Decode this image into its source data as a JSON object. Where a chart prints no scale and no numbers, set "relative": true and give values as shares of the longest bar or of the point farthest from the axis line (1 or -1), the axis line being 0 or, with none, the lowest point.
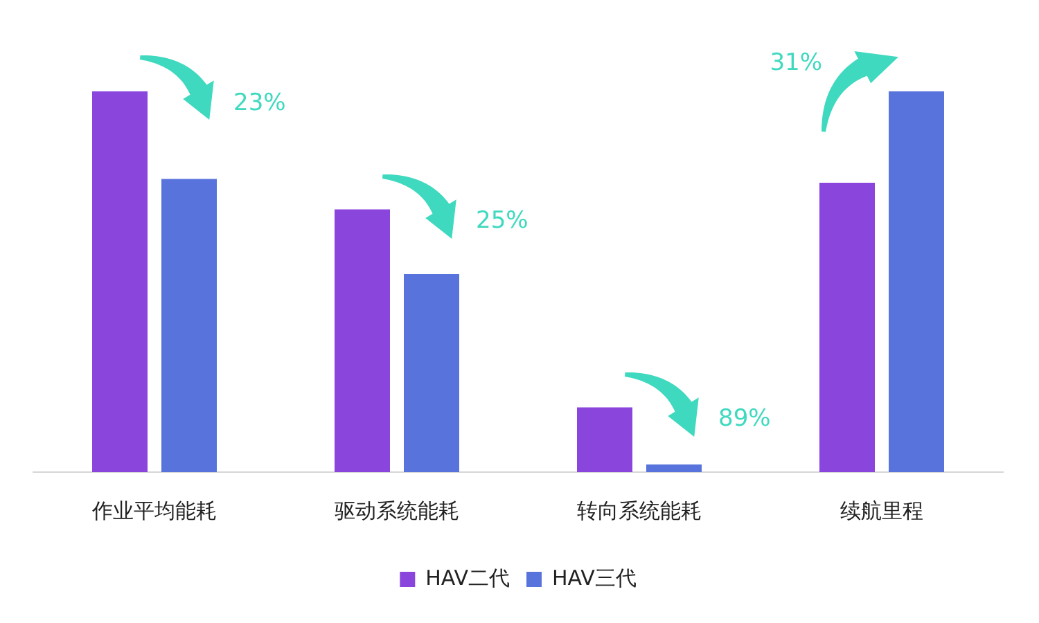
{
  "chart_data": {
    "type": "bar",
    "relative": true,
    "categories": [
      "作业平均能耗",
      "驱动系统能耗",
      "转向系统能耗",
      "续航里程"
    ],
    "series": [
      {
        "name": "HAV二代",
        "color": "#8a45dc",
        "values": [
          1,
          0.69,
          0.17,
          0.76
        ]
      },
      {
        "name": "HAV三代",
        "color": "#5873dc",
        "values": [
          0.77,
          0.52,
          0.02,
          1
        ]
      }
    ],
    "legend": "bottom",
    "annotations": [
      "23%",
      "25%",
      "89%",
      "31%"
    ]
  }
}
